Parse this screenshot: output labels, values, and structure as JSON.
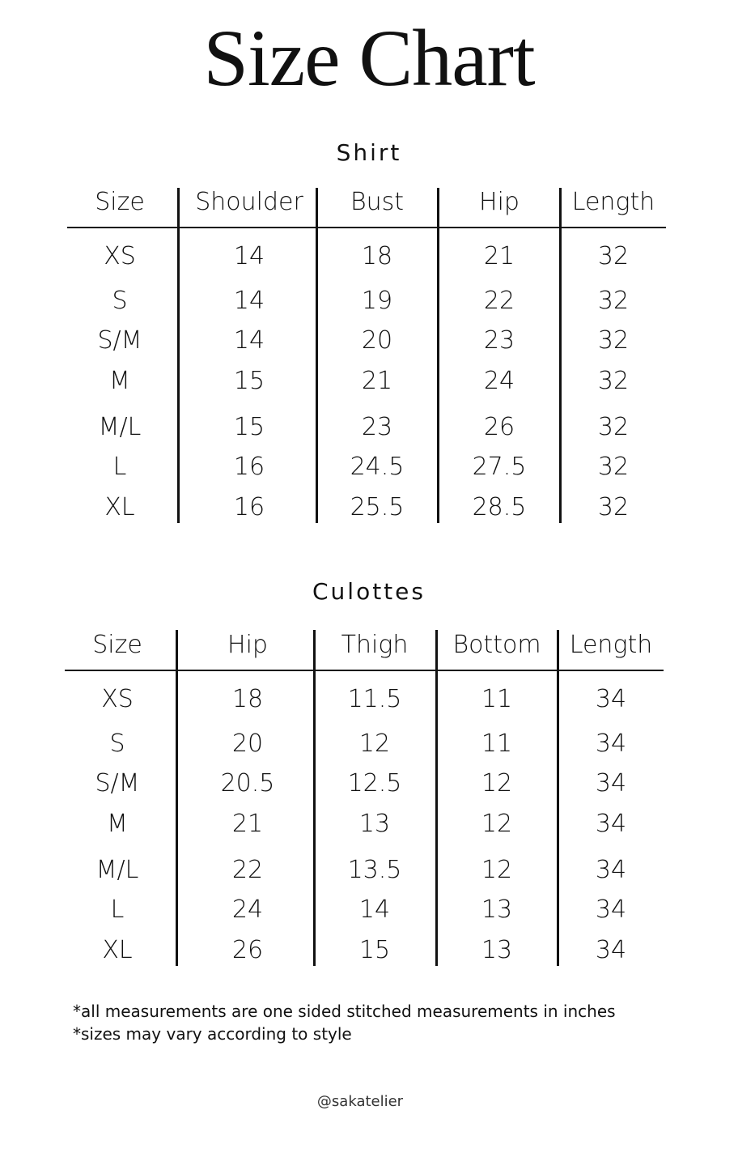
{
  "title": "Size Chart",
  "tables": [
    {
      "name": "Shirt",
      "headers": [
        "Size",
        "Shoulder",
        "Bust",
        "Hip",
        "Length"
      ],
      "rows": [
        [
          "XS",
          "14",
          "18",
          "21",
          "32"
        ],
        [
          "S",
          "14",
          "19",
          "22",
          "32"
        ],
        [
          "S/M",
          "14",
          "20",
          "23",
          "32"
        ],
        [
          "M",
          "15",
          "21",
          "24",
          "32"
        ],
        [
          "M/L",
          "15",
          "23",
          "26",
          "32"
        ],
        [
          "L",
          "16",
          "24.5",
          "27.5",
          "32"
        ],
        [
          "XL",
          "16",
          "25.5",
          "28.5",
          "32"
        ]
      ]
    },
    {
      "name": "Culottes",
      "headers": [
        "Size",
        "Hip",
        "Thigh",
        "Bottom",
        "Length"
      ],
      "rows": [
        [
          "XS",
          "18",
          "11.5",
          "11",
          "34"
        ],
        [
          "S",
          "20",
          "12",
          "11",
          "34"
        ],
        [
          "S/M",
          "20.5",
          "12.5",
          "12",
          "34"
        ],
        [
          "M",
          "21",
          "13",
          "12",
          "34"
        ],
        [
          "M/L",
          "22",
          "13.5",
          "12",
          "34"
        ],
        [
          "L",
          "24",
          "14",
          "13",
          "34"
        ],
        [
          "XL",
          "26",
          "15",
          "13",
          "34"
        ]
      ]
    }
  ],
  "notes": [
    "*all measurements are one sided stitched measurements in inches",
    "*sizes may vary according to style"
  ],
  "handle": "@sakatelier"
}
